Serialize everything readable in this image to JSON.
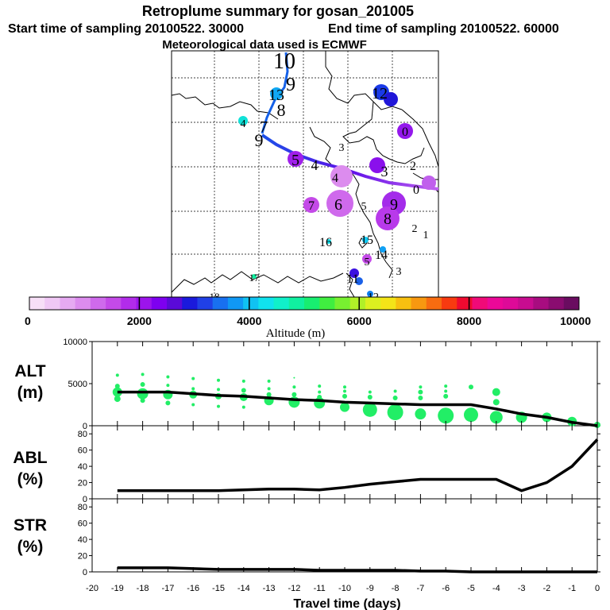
{
  "header": {
    "title": "Retroplume summary for gosan_201005",
    "start_time": "Start time of sampling 20100522. 30000",
    "end_time": "End time of sampling 20100522. 60000",
    "met_data": "Meteorological data used is ECMWF"
  },
  "colorbar": {
    "label": "Altitude (m)",
    "tick_labels": [
      "0",
      "2000",
      "4000",
      "6000",
      "8000",
      "10000"
    ],
    "range": [
      0,
      10000
    ],
    "colors": [
      "#f7dff7",
      "#f0c8f5",
      "#e6aaf2",
      "#dc8cee",
      "#cf6aec",
      "#c44ae8",
      "#b22cea",
      "#9c14ec",
      "#7e00f0",
      "#5a0ad8",
      "#1a1adc",
      "#2040e6",
      "#1870f0",
      "#1098f4",
      "#10c2f2",
      "#10e2ee",
      "#10f0ca",
      "#10f0a0",
      "#18ee70",
      "#40ee40",
      "#78f030",
      "#b0f028",
      "#dcf020",
      "#f4e418",
      "#f8c010",
      "#f89810",
      "#f86c10",
      "#f83a10",
      "#f00a30",
      "#f00a78",
      "#ec0898",
      "#de0a98",
      "#c80c90",
      "#a80c80",
      "#8a0c70",
      "#6a0c60"
    ]
  },
  "map": {
    "trajectory_numbers": [
      {
        "label": "10",
        "alt": 2500
      },
      {
        "label": "9",
        "alt": 2800
      },
      {
        "label": "13",
        "alt": 3300
      },
      {
        "label": "8",
        "alt": 3000
      },
      {
        "label": "12",
        "alt": 2300
      },
      {
        "label": "4",
        "alt": 3800
      },
      {
        "label": "7",
        "alt": 3000
      },
      {
        "label": "9",
        "alt": 2500
      },
      {
        "label": "0",
        "alt": 1700
      },
      {
        "label": "3",
        "alt": 1800
      },
      {
        "label": "5",
        "alt": 1600
      },
      {
        "label": "4",
        "alt": 1300
      },
      {
        "label": "3",
        "alt": 1700
      },
      {
        "label": "2",
        "alt": 1600
      },
      {
        "label": "0",
        "alt": 1200
      },
      {
        "label": "4",
        "alt": 1000
      },
      {
        "label": "7",
        "alt": 1700
      },
      {
        "label": "6",
        "alt": 1400
      },
      {
        "label": "5",
        "alt": 1800
      },
      {
        "label": "9",
        "alt": 1700
      },
      {
        "label": "8",
        "alt": 1500
      },
      {
        "label": "2",
        "alt": 0
      },
      {
        "label": "1",
        "alt": 0
      },
      {
        "label": "16",
        "alt": 4200
      },
      {
        "label": "15",
        "alt": 3600
      },
      {
        "label": "14",
        "alt": 3400
      },
      {
        "label": "5",
        "alt": 1600
      },
      {
        "label": "3",
        "alt": 0
      },
      {
        "label": "11",
        "alt": 2200
      },
      {
        "label": "12",
        "alt": 3200
      },
      {
        "label": "17",
        "alt": 4300
      },
      {
        "label": "18",
        "alt": 4000
      }
    ]
  },
  "panels": {
    "alt_label": [
      "ALT",
      "(m)"
    ],
    "abl_label": [
      "ABL",
      "(%)"
    ],
    "str_label": [
      "STR",
      "(%)"
    ],
    "xlabel": "Travel time (days)"
  },
  "chart_data": [
    {
      "type": "line",
      "panel": "ALT",
      "ylabel": "ALT (m)",
      "ylim": [
        0,
        10000
      ],
      "yticks": [
        "0",
        "5000",
        "10000"
      ],
      "x": [
        -19,
        -18,
        -17,
        -16,
        -15,
        -14,
        -13,
        -12,
        -11,
        -10,
        -9,
        -8,
        -7,
        -6,
        -5,
        -4,
        -3,
        -2,
        -1,
        0
      ],
      "values": [
        4000,
        4000,
        4000,
        3800,
        3600,
        3500,
        3300,
        3100,
        3000,
        2800,
        2700,
        2600,
        2500,
        2500,
        2500,
        2000,
        1400,
        1000,
        400,
        0
      ],
      "scatter_note": "green/cyan plume circles at each day",
      "plume_points": [
        {
          "x": -19,
          "y": 4000,
          "s": 6
        },
        {
          "x": -19,
          "y": 3200,
          "s": 4
        },
        {
          "x": -19,
          "y": 4700,
          "s": 3
        },
        {
          "x": -19,
          "y": 6000,
          "s": 2
        },
        {
          "x": -18,
          "y": 3800,
          "s": 7
        },
        {
          "x": -18,
          "y": 3000,
          "s": 3
        },
        {
          "x": -18,
          "y": 4900,
          "s": 3
        },
        {
          "x": -18,
          "y": 6100,
          "s": 2
        },
        {
          "x": -17,
          "y": 3700,
          "s": 6
        },
        {
          "x": -17,
          "y": 2700,
          "s": 3
        },
        {
          "x": -17,
          "y": 4800,
          "s": 2
        },
        {
          "x": -17,
          "y": 5800,
          "s": 2
        },
        {
          "x": -16,
          "y": 3700,
          "s": 5
        },
        {
          "x": -16,
          "y": 2500,
          "s": 2
        },
        {
          "x": -16,
          "y": 4400,
          "s": 2
        },
        {
          "x": -16,
          "y": 5600,
          "s": 2
        },
        {
          "x": -15,
          "y": 3500,
          "s": 4
        },
        {
          "x": -15,
          "y": 2300,
          "s": 2
        },
        {
          "x": -15,
          "y": 4300,
          "s": 2
        },
        {
          "x": -15,
          "y": 5400,
          "s": 2
        },
        {
          "x": -14,
          "y": 3400,
          "s": 5
        },
        {
          "x": -14,
          "y": 2200,
          "s": 2
        },
        {
          "x": -14,
          "y": 4200,
          "s": 3
        },
        {
          "x": -14,
          "y": 5300,
          "s": 2
        },
        {
          "x": -13,
          "y": 3000,
          "s": 6
        },
        {
          "x": -13,
          "y": 3700,
          "s": 3
        },
        {
          "x": -13,
          "y": 4400,
          "s": 2
        },
        {
          "x": -13,
          "y": 5300,
          "s": 2
        },
        {
          "x": -12,
          "y": 2800,
          "s": 7
        },
        {
          "x": -12,
          "y": 3700,
          "s": 3
        },
        {
          "x": -12,
          "y": 4600,
          "s": 2
        },
        {
          "x": -12,
          "y": 5700,
          "s": 1
        },
        {
          "x": -11,
          "y": 2700,
          "s": 7
        },
        {
          "x": -11,
          "y": 3400,
          "s": 3
        },
        {
          "x": -11,
          "y": 4000,
          "s": 2
        },
        {
          "x": -11,
          "y": 4700,
          "s": 2
        },
        {
          "x": -10,
          "y": 2200,
          "s": 6
        },
        {
          "x": -10,
          "y": 3500,
          "s": 3
        },
        {
          "x": -10,
          "y": 4100,
          "s": 2
        },
        {
          "x": -10,
          "y": 4600,
          "s": 2
        },
        {
          "x": -9,
          "y": 1900,
          "s": 9
        },
        {
          "x": -9,
          "y": 3400,
          "s": 3
        },
        {
          "x": -9,
          "y": 4000,
          "s": 2
        },
        {
          "x": -8,
          "y": 1600,
          "s": 10
        },
        {
          "x": -8,
          "y": 3300,
          "s": 3
        },
        {
          "x": -8,
          "y": 4100,
          "s": 2
        },
        {
          "x": -7,
          "y": 1400,
          "s": 7
        },
        {
          "x": -7,
          "y": 3300,
          "s": 3
        },
        {
          "x": -7,
          "y": 4000,
          "s": 3
        },
        {
          "x": -7,
          "y": 4600,
          "s": 2
        },
        {
          "x": -6,
          "y": 1200,
          "s": 10
        },
        {
          "x": -6,
          "y": 3500,
          "s": 3
        },
        {
          "x": -6,
          "y": 4100,
          "s": 2
        },
        {
          "x": -6,
          "y": 4700,
          "s": 2
        },
        {
          "x": -5,
          "y": 1300,
          "s": 9
        },
        {
          "x": -5,
          "y": 4600,
          "s": 3
        },
        {
          "x": -4,
          "y": 1000,
          "s": 8
        },
        {
          "x": -4,
          "y": 2800,
          "s": 4
        },
        {
          "x": -4,
          "y": 4000,
          "s": 5
        },
        {
          "x": -3,
          "y": 1000,
          "s": 7
        },
        {
          "x": -2,
          "y": 1000,
          "s": 6
        },
        {
          "x": -1,
          "y": 500,
          "s": 6
        },
        {
          "x": 0,
          "y": 100,
          "s": 4
        }
      ]
    },
    {
      "type": "line",
      "panel": "ABL",
      "ylabel": "ABL (%)",
      "ylim": [
        0,
        90
      ],
      "yticks": [
        "0",
        "20",
        "40",
        "60",
        "80"
      ],
      "x": [
        -19,
        -18,
        -17,
        -16,
        -15,
        -14,
        -13,
        -12,
        -11,
        -10,
        -9,
        -8,
        -7,
        -6,
        -5,
        -4,
        -3,
        -2,
        -1,
        0
      ],
      "values": [
        10,
        10,
        10,
        10,
        10,
        11,
        12,
        12,
        11,
        14,
        18,
        21,
        24,
        24,
        24,
        24,
        10,
        20,
        40,
        73
      ]
    },
    {
      "type": "line",
      "panel": "STR",
      "ylabel": "STR (%)",
      "ylim": [
        0,
        90
      ],
      "yticks": [
        "0",
        "20",
        "40",
        "60",
        "80"
      ],
      "x": [
        -19,
        -18,
        -17,
        -16,
        -15,
        -14,
        -13,
        -12,
        -11,
        -10,
        -9,
        -8,
        -7,
        -6,
        -5,
        -4,
        -3,
        -2,
        -1,
        0
      ],
      "values": [
        5,
        5,
        5,
        4,
        3,
        3,
        3,
        3,
        2,
        2,
        2,
        2,
        1,
        1,
        0,
        0,
        0,
        0,
        0,
        0
      ],
      "xlabel": "Travel time (days)",
      "xticks": [
        "-20",
        "-19",
        "-18",
        "-17",
        "-16",
        "-15",
        "-14",
        "-13",
        "-12",
        "-11",
        "-10",
        "-9",
        "-8",
        "-7",
        "-6",
        "-5",
        "-4",
        "-3",
        "-2",
        "-1",
        "0"
      ]
    }
  ]
}
